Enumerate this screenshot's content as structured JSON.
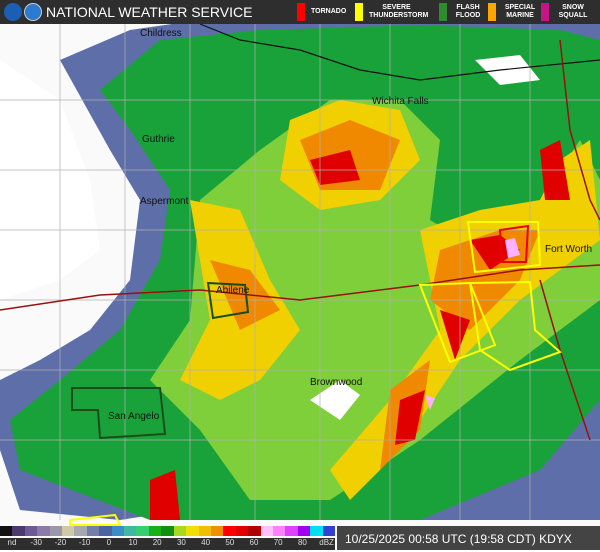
{
  "header": {
    "title": "NATIONAL WEATHER SERVICE"
  },
  "legend": [
    {
      "label": "TORNADO",
      "color": "#ff0000"
    },
    {
      "label": "SEVERE THUNDERSTORM",
      "color": "#ffff00"
    },
    {
      "label": "FLASH FLOOD",
      "color": "#2e8b2e"
    },
    {
      "label": "SPECIAL MARINE",
      "color": "#ffa500"
    },
    {
      "label": "SNOW SQUALL",
      "color": "#c71585"
    }
  ],
  "cities": [
    "Childress",
    "Wichita Falls",
    "Guthrie",
    "Aspermont",
    "Abilene",
    "Fort Worth",
    "San Angelo",
    "Brownwood"
  ],
  "scale": {
    "ticks": [
      "nd",
      "-30",
      "-20",
      "-10",
      "0",
      "10",
      "20",
      "30",
      "40",
      "50",
      "60",
      "70",
      "80",
      "dBZ"
    ],
    "colors": [
      "#111",
      "#4b3a6e",
      "#6e5a94",
      "#8a7ba8",
      "#9a98a8",
      "#cfc9a8",
      "#a8a8b0",
      "#7080a8",
      "#4a64a0",
      "#3c8cc8",
      "#40b8a0",
      "#34d070",
      "#18b018",
      "#109010",
      "#a8d820",
      "#f0e000",
      "#f0c000",
      "#f09000",
      "#ff0000",
      "#e00000",
      "#b00000",
      "#ffc0ff",
      "#ff80ff",
      "#e040ff",
      "#a000f0",
      "#00e0f0",
      "#3040d0"
    ]
  },
  "timestamp": "10/25/2025 00:58 UTC (19:58 CDT) KDYX"
}
